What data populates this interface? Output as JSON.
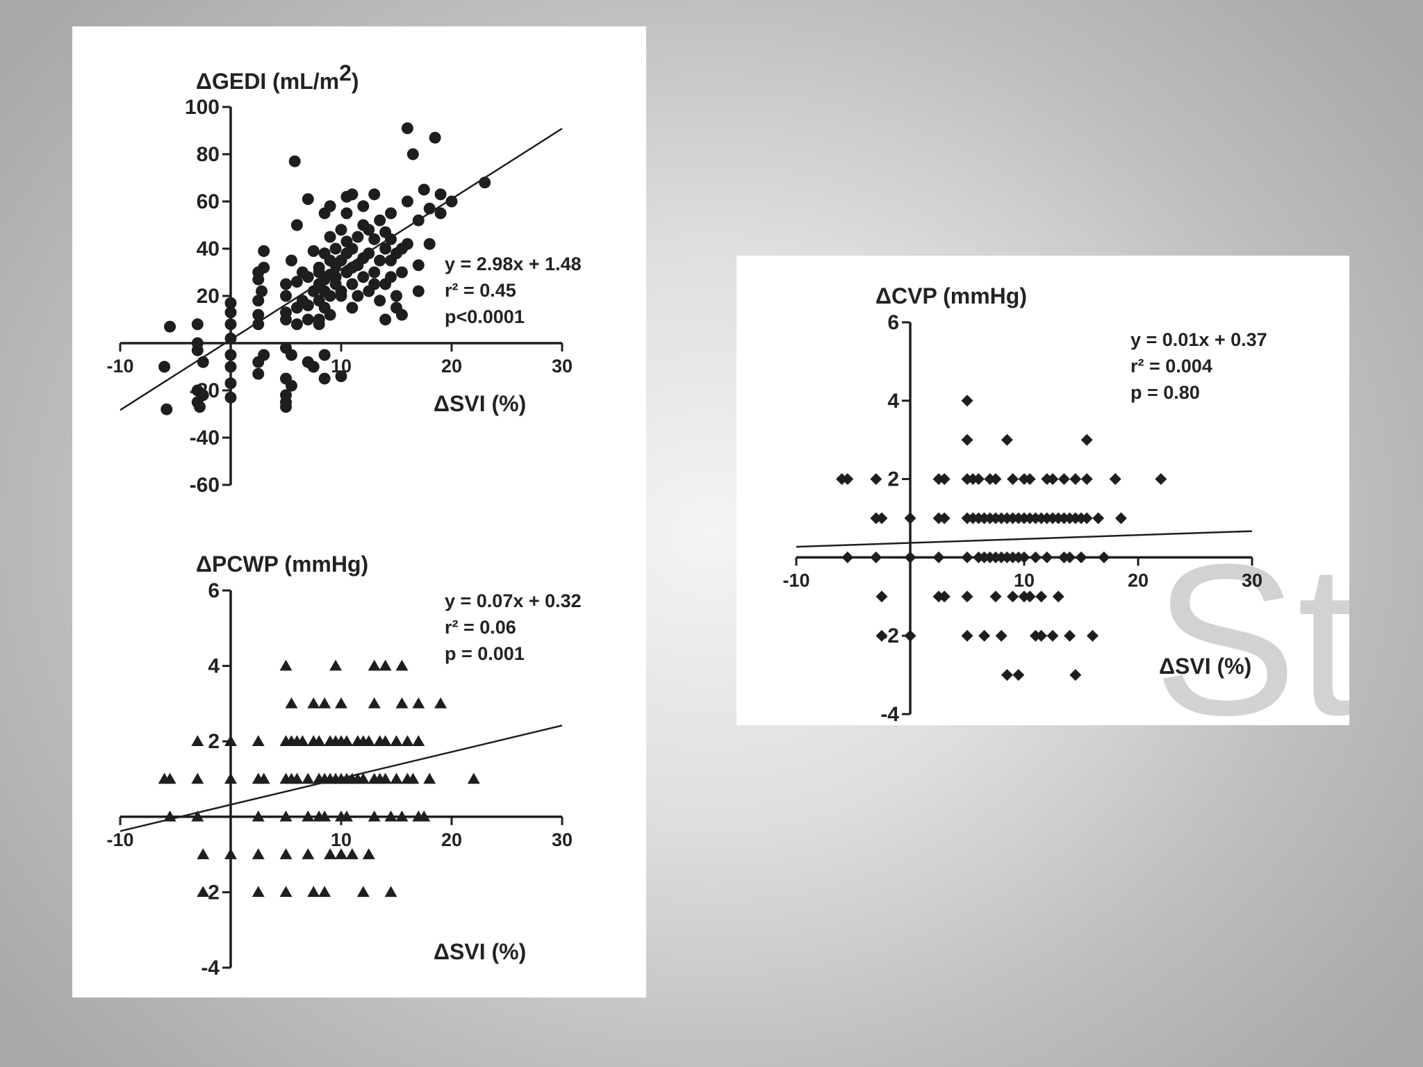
{
  "colors": {
    "ink": "#1e1e1e",
    "panel": "#ffffff",
    "watermark": "#cfcfcf"
  },
  "watermark": "St",
  "chart_data": [
    {
      "id": "gedi",
      "type": "scatter",
      "marker": "circle",
      "title": "ΔGEDI (mL/m²)",
      "title_main": "ΔGEDI (mL/m",
      "title_sup": "2",
      "title_end": ")",
      "xlabel": "ΔSVI (%)",
      "ylabel": "ΔGEDI (mL/m²)",
      "xlim": [
        -10,
        30
      ],
      "ylim": [
        -60,
        100
      ],
      "xticks": [
        -10,
        0,
        10,
        20,
        30
      ],
      "xtick_labels": [
        "-10",
        "",
        "10",
        "20",
        "30"
      ],
      "yticks": [
        -60,
        -40,
        -20,
        0,
        20,
        40,
        60,
        80,
        100
      ],
      "ytick_labels": [
        "-60",
        "-40",
        "-20",
        "",
        "20",
        "40",
        "60",
        "80",
        "100"
      ],
      "regression": {
        "slope": 2.98,
        "intercept": 1.48,
        "x_range": [
          -10,
          30
        ]
      },
      "annotations": [
        "y = 2.98x + 1.48",
        "r² = 0.45",
        "p<0.0001"
      ],
      "points": [
        [
          -5.8,
          -28
        ],
        [
          -6,
          -10
        ],
        [
          -5.5,
          7
        ],
        [
          -3,
          8
        ],
        [
          -3,
          0
        ],
        [
          -3,
          -3
        ],
        [
          -3,
          -20
        ],
        [
          -3,
          -25
        ],
        [
          -2.8,
          -27
        ],
        [
          -2.5,
          -22
        ],
        [
          -2.5,
          -8
        ],
        [
          0,
          -10
        ],
        [
          0,
          -17
        ],
        [
          0,
          -23
        ],
        [
          0,
          -5
        ],
        [
          0,
          2
        ],
        [
          0,
          8
        ],
        [
          0,
          13
        ],
        [
          0,
          17
        ],
        [
          2.5,
          -8
        ],
        [
          2.5,
          -13
        ],
        [
          2.5,
          8
        ],
        [
          2.5,
          12
        ],
        [
          2.5,
          18
        ],
        [
          2.5,
          27
        ],
        [
          2.5,
          30
        ],
        [
          2.8,
          22
        ],
        [
          3,
          32
        ],
        [
          3,
          39
        ],
        [
          3,
          -5
        ],
        [
          5,
          -15
        ],
        [
          5,
          10
        ],
        [
          5,
          13
        ],
        [
          5,
          20
        ],
        [
          5,
          25
        ],
        [
          5,
          -2
        ],
        [
          5,
          -22
        ],
        [
          5,
          -25
        ],
        [
          5,
          -27
        ],
        [
          5.5,
          35
        ],
        [
          5.5,
          -5
        ],
        [
          5.5,
          -18
        ],
        [
          6,
          50
        ],
        [
          5.8,
          77
        ],
        [
          6,
          8
        ],
        [
          6,
          15
        ],
        [
          6,
          26
        ],
        [
          6.5,
          18
        ],
        [
          6.5,
          30
        ],
        [
          7,
          -8
        ],
        [
          7,
          10
        ],
        [
          7,
          16
        ],
        [
          7,
          28
        ],
        [
          7,
          61
        ],
        [
          7.5,
          -10
        ],
        [
          7.5,
          22
        ],
        [
          7.5,
          39
        ],
        [
          8,
          10
        ],
        [
          8,
          18
        ],
        [
          8,
          25
        ],
        [
          8,
          32
        ],
        [
          8,
          8
        ],
        [
          8.5,
          -15
        ],
        [
          8.5,
          -5
        ],
        [
          8.5,
          15
        ],
        [
          8.5,
          22
        ],
        [
          8.5,
          27
        ],
        [
          8.5,
          38
        ],
        [
          8.5,
          55
        ],
        [
          9,
          12
        ],
        [
          9,
          20
        ],
        [
          9,
          29
        ],
        [
          9,
          35
        ],
        [
          9,
          45
        ],
        [
          9,
          58
        ],
        [
          9.5,
          25
        ],
        [
          9.5,
          33
        ],
        [
          9.5,
          40
        ],
        [
          9.5,
          28
        ],
        [
          10,
          -14
        ],
        [
          10,
          22
        ],
        [
          10,
          35
        ],
        [
          10,
          48
        ],
        [
          10,
          20
        ],
        [
          10.5,
          30
        ],
        [
          10.5,
          38
        ],
        [
          10.5,
          43
        ],
        [
          10.5,
          55
        ],
        [
          11,
          15
        ],
        [
          11,
          25
        ],
        [
          11,
          32
        ],
        [
          11,
          40
        ],
        [
          11,
          63
        ],
        [
          11.5,
          20
        ],
        [
          11.5,
          33
        ],
        [
          11.5,
          45
        ],
        [
          12,
          28
        ],
        [
          12,
          36
        ],
        [
          12,
          50
        ],
        [
          12,
          58
        ],
        [
          12.5,
          22
        ],
        [
          12.5,
          38
        ],
        [
          12.5,
          48
        ],
        [
          13,
          25
        ],
        [
          13,
          30
        ],
        [
          13,
          44
        ],
        [
          13,
          63
        ],
        [
          13.5,
          18
        ],
        [
          13.5,
          35
        ],
        [
          13.5,
          52
        ],
        [
          14,
          10
        ],
        [
          14,
          25
        ],
        [
          14,
          40
        ],
        [
          14,
          47
        ],
        [
          14.5,
          28
        ],
        [
          14.5,
          35
        ],
        [
          14.5,
          44
        ],
        [
          14.5,
          55
        ],
        [
          15,
          15
        ],
        [
          15,
          20
        ],
        [
          15,
          38
        ],
        [
          15.5,
          12
        ],
        [
          15.5,
          30
        ],
        [
          15.5,
          40
        ],
        [
          16,
          42
        ],
        [
          16,
          60
        ],
        [
          16.5,
          80
        ],
        [
          17,
          22
        ],
        [
          17,
          33
        ],
        [
          17,
          52
        ],
        [
          17.5,
          65
        ],
        [
          18,
          42
        ],
        [
          18,
          57
        ],
        [
          18.5,
          87
        ],
        [
          19,
          55
        ],
        [
          19,
          63
        ],
        [
          20,
          60
        ],
        [
          16,
          91
        ],
        [
          23,
          68
        ],
        [
          10.5,
          62
        ],
        [
          9.5,
          28
        ],
        [
          8,
          30
        ]
      ]
    },
    {
      "id": "pcwp",
      "type": "scatter",
      "marker": "triangle",
      "title": "ΔPCWP (mmHg)",
      "xlabel": "ΔSVI (%)",
      "ylabel": "ΔPCWP (mmHg)",
      "xlim": [
        -10,
        30
      ],
      "ylim": [
        -4,
        6
      ],
      "xticks": [
        -10,
        0,
        10,
        20,
        30
      ],
      "xtick_labels": [
        "-10",
        "",
        "10",
        "20",
        "30"
      ],
      "yticks": [
        -4,
        -2,
        0,
        2,
        4,
        6
      ],
      "ytick_labels": [
        "-4",
        "-2",
        "",
        "2",
        "4",
        "6"
      ],
      "regression": {
        "slope": 0.07,
        "intercept": 0.32,
        "x_range": [
          -10,
          30
        ]
      },
      "annotations": [
        "y = 0.07x + 0.32",
        "r² = 0.06",
        "p = 0.001"
      ],
      "points": [
        [
          -6,
          1
        ],
        [
          -5.5,
          1
        ],
        [
          -5.5,
          0
        ],
        [
          -3,
          2
        ],
        [
          -3,
          1
        ],
        [
          -3,
          0
        ],
        [
          -2.5,
          -1
        ],
        [
          -2.5,
          -2
        ],
        [
          0,
          2
        ],
        [
          0,
          1
        ],
        [
          0,
          -1
        ],
        [
          2.5,
          2
        ],
        [
          2.5,
          1
        ],
        [
          2.5,
          0
        ],
        [
          2.5,
          -1
        ],
        [
          2.5,
          -2
        ],
        [
          3,
          1
        ],
        [
          5,
          4
        ],
        [
          5,
          2
        ],
        [
          5,
          1
        ],
        [
          5,
          0
        ],
        [
          5,
          -1
        ],
        [
          5,
          -2
        ],
        [
          5.5,
          3
        ],
        [
          5.5,
          2
        ],
        [
          5.5,
          1
        ],
        [
          6,
          2
        ],
        [
          6,
          1
        ],
        [
          6.5,
          2
        ],
        [
          7,
          1
        ],
        [
          7,
          0
        ],
        [
          7,
          -1
        ],
        [
          7.5,
          3
        ],
        [
          7.5,
          2
        ],
        [
          7.5,
          -2
        ],
        [
          8,
          2
        ],
        [
          8,
          1
        ],
        [
          8,
          0
        ],
        [
          8.5,
          3
        ],
        [
          8.5,
          1
        ],
        [
          8.5,
          0
        ],
        [
          8.5,
          -2
        ],
        [
          9,
          2
        ],
        [
          9,
          1
        ],
        [
          9,
          -1
        ],
        [
          9.5,
          4
        ],
        [
          9.5,
          2
        ],
        [
          9.5,
          1
        ],
        [
          10,
          3
        ],
        [
          10,
          2
        ],
        [
          10,
          1
        ],
        [
          10,
          0
        ],
        [
          10,
          -1
        ],
        [
          10.5,
          2
        ],
        [
          10.5,
          1
        ],
        [
          10.5,
          0
        ],
        [
          11,
          1
        ],
        [
          11,
          -1
        ],
        [
          11.5,
          2
        ],
        [
          11.5,
          1
        ],
        [
          12,
          2
        ],
        [
          12,
          1
        ],
        [
          12,
          -2
        ],
        [
          12.5,
          -1
        ],
        [
          12.5,
          2
        ],
        [
          13,
          1
        ],
        [
          13,
          0
        ],
        [
          13,
          4
        ],
        [
          13,
          3
        ],
        [
          13.5,
          2
        ],
        [
          13.5,
          1
        ],
        [
          14,
          4
        ],
        [
          14,
          2
        ],
        [
          14,
          1
        ],
        [
          14.5,
          0
        ],
        [
          14.5,
          -2
        ],
        [
          15,
          2
        ],
        [
          15,
          1
        ],
        [
          15.5,
          4
        ],
        [
          15.5,
          3
        ],
        [
          15.5,
          0
        ],
        [
          16,
          2
        ],
        [
          16,
          1
        ],
        [
          16.5,
          1
        ],
        [
          17,
          3
        ],
        [
          17,
          2
        ],
        [
          17,
          0
        ],
        [
          17.5,
          0
        ],
        [
          18,
          1
        ],
        [
          19,
          3
        ],
        [
          22,
          1
        ]
      ]
    },
    {
      "id": "cvp",
      "type": "scatter",
      "marker": "diamond",
      "title": "ΔCVP (mmHg)",
      "xlabel": "ΔSVI (%)",
      "ylabel": "ΔCVP (mmHg)",
      "xlim": [
        -10,
        30
      ],
      "ylim": [
        -4,
        6
      ],
      "xticks": [
        -10,
        0,
        10,
        20,
        30
      ],
      "xtick_labels": [
        "-10",
        "",
        "10",
        "20",
        "30"
      ],
      "yticks": [
        -4,
        -2,
        0,
        2,
        4,
        6
      ],
      "ytick_labels": [
        "-4",
        "-2",
        "",
        "2",
        "4",
        "6"
      ],
      "regression": {
        "slope": 0.01,
        "intercept": 0.37,
        "x_range": [
          -10,
          30
        ]
      },
      "annotations": [
        "y = 0.01x + 0.37",
        "r² = 0.004",
        "p = 0.80"
      ],
      "points": [
        [
          -6,
          2
        ],
        [
          -5.5,
          2
        ],
        [
          -5.5,
          0
        ],
        [
          -3,
          2
        ],
        [
          -3,
          1
        ],
        [
          -2.5,
          1
        ],
        [
          -2.5,
          -1
        ],
        [
          -2.5,
          -2
        ],
        [
          -3,
          0
        ],
        [
          0,
          1
        ],
        [
          0,
          0
        ],
        [
          0,
          -2
        ],
        [
          2.5,
          2
        ],
        [
          2.5,
          1
        ],
        [
          2.5,
          0
        ],
        [
          2.5,
          -1
        ],
        [
          3,
          2
        ],
        [
          3,
          1
        ],
        [
          3,
          -1
        ],
        [
          5,
          4
        ],
        [
          5,
          3
        ],
        [
          5,
          2
        ],
        [
          5,
          1
        ],
        [
          5,
          0
        ],
        [
          5,
          -1
        ],
        [
          5,
          -2
        ],
        [
          5.5,
          2
        ],
        [
          5.5,
          1
        ],
        [
          6,
          2
        ],
        [
          6,
          1
        ],
        [
          6,
          0
        ],
        [
          6.5,
          1
        ],
        [
          6.5,
          0
        ],
        [
          6.5,
          -2
        ],
        [
          7,
          2
        ],
        [
          7,
          1
        ],
        [
          7,
          0
        ],
        [
          7.5,
          2
        ],
        [
          7.5,
          1
        ],
        [
          7.5,
          0
        ],
        [
          7.5,
          -1
        ],
        [
          8,
          1
        ],
        [
          8,
          0
        ],
        [
          8,
          -2
        ],
        [
          8.5,
          3
        ],
        [
          8.5,
          1
        ],
        [
          8.5,
          0
        ],
        [
          8.5,
          -3
        ],
        [
          9,
          2
        ],
        [
          9,
          1
        ],
        [
          9,
          0
        ],
        [
          9,
          -1
        ],
        [
          9.5,
          1
        ],
        [
          9.5,
          0
        ],
        [
          9.5,
          -3
        ],
        [
          10,
          2
        ],
        [
          10,
          1
        ],
        [
          10,
          0
        ],
        [
          10,
          -1
        ],
        [
          10.5,
          2
        ],
        [
          10.5,
          1
        ],
        [
          10.5,
          -1
        ],
        [
          11,
          1
        ],
        [
          11,
          0
        ],
        [
          11,
          -2
        ],
        [
          11.5,
          1
        ],
        [
          11.5,
          -1
        ],
        [
          11.5,
          -2
        ],
        [
          12,
          2
        ],
        [
          12,
          1
        ],
        [
          12,
          0
        ],
        [
          12.5,
          2
        ],
        [
          12.5,
          1
        ],
        [
          12.5,
          -2
        ],
        [
          13,
          1
        ],
        [
          13,
          -1
        ],
        [
          13.5,
          2
        ],
        [
          13.5,
          1
        ],
        [
          13.5,
          0
        ],
        [
          14,
          1
        ],
        [
          14,
          0
        ],
        [
          14,
          -2
        ],
        [
          14.5,
          2
        ],
        [
          14.5,
          1
        ],
        [
          14.5,
          -3
        ],
        [
          15,
          1
        ],
        [
          15,
          0
        ],
        [
          15.5,
          3
        ],
        [
          15.5,
          2
        ],
        [
          15.5,
          1
        ],
        [
          16,
          -2
        ],
        [
          16.5,
          1
        ],
        [
          17,
          0
        ],
        [
          18,
          2
        ],
        [
          18.5,
          1
        ],
        [
          22,
          2
        ]
      ]
    }
  ]
}
